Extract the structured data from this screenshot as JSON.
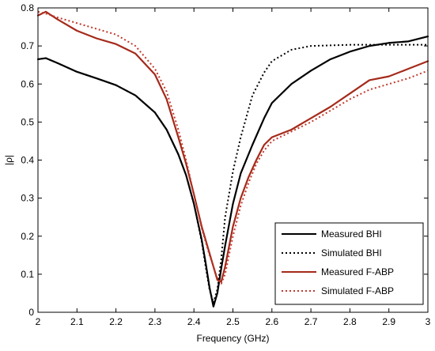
{
  "chart_data": {
    "type": "line",
    "xlabel": "Frequency (GHz)",
    "ylabel": "|ρ|",
    "xlim": [
      2,
      3
    ],
    "ylim": [
      0,
      0.8
    ],
    "x_ticks": [
      2,
      2.1,
      2.2,
      2.3,
      2.4,
      2.5,
      2.6,
      2.7,
      2.8,
      2.9,
      3
    ],
    "x_tick_labels": [
      "2",
      "2.1",
      "2.2",
      "2.3",
      "2.4",
      "2.5",
      "2.6",
      "2.7",
      "2.8",
      "2.9",
      "3"
    ],
    "y_ticks": [
      0,
      0.1,
      0.2,
      0.3,
      0.4,
      0.5,
      0.6,
      0.7,
      0.8
    ],
    "y_tick_labels": [
      "0",
      "0.1",
      "0.2",
      "0.3",
      "0.4",
      "0.5",
      "0.6",
      "0.7",
      "0.8"
    ],
    "grid": false,
    "legend_position": "bottom-right",
    "series": [
      {
        "name": "Measured BHI",
        "color": "#000000",
        "style": "solid",
        "points": [
          [
            2.0,
            0.665
          ],
          [
            2.02,
            0.668
          ],
          [
            2.05,
            0.655
          ],
          [
            2.1,
            0.632
          ],
          [
            2.15,
            0.615
          ],
          [
            2.2,
            0.597
          ],
          [
            2.25,
            0.57
          ],
          [
            2.3,
            0.525
          ],
          [
            2.33,
            0.48
          ],
          [
            2.36,
            0.415
          ],
          [
            2.38,
            0.36
          ],
          [
            2.4,
            0.285
          ],
          [
            2.42,
            0.19
          ],
          [
            2.43,
            0.13
          ],
          [
            2.44,
            0.065
          ],
          [
            2.45,
            0.015
          ],
          [
            2.46,
            0.05
          ],
          [
            2.47,
            0.115
          ],
          [
            2.48,
            0.175
          ],
          [
            2.5,
            0.285
          ],
          [
            2.52,
            0.365
          ],
          [
            2.55,
            0.44
          ],
          [
            2.58,
            0.51
          ],
          [
            2.6,
            0.55
          ],
          [
            2.65,
            0.6
          ],
          [
            2.7,
            0.635
          ],
          [
            2.75,
            0.665
          ],
          [
            2.8,
            0.685
          ],
          [
            2.85,
            0.7
          ],
          [
            2.9,
            0.708
          ],
          [
            2.95,
            0.712
          ],
          [
            3.0,
            0.725
          ]
        ]
      },
      {
        "name": "Simulated BHI",
        "color": "#000000",
        "style": "dotted",
        "points": [
          [
            2.0,
            0.665
          ],
          [
            2.02,
            0.668
          ],
          [
            2.05,
            0.655
          ],
          [
            2.1,
            0.632
          ],
          [
            2.15,
            0.615
          ],
          [
            2.2,
            0.597
          ],
          [
            2.25,
            0.57
          ],
          [
            2.3,
            0.525
          ],
          [
            2.33,
            0.48
          ],
          [
            2.36,
            0.415
          ],
          [
            2.38,
            0.36
          ],
          [
            2.4,
            0.285
          ],
          [
            2.42,
            0.185
          ],
          [
            2.43,
            0.12
          ],
          [
            2.44,
            0.06
          ],
          [
            2.45,
            0.025
          ],
          [
            2.46,
            0.06
          ],
          [
            2.47,
            0.14
          ],
          [
            2.48,
            0.25
          ],
          [
            2.5,
            0.37
          ],
          [
            2.52,
            0.46
          ],
          [
            2.55,
            0.57
          ],
          [
            2.58,
            0.63
          ],
          [
            2.6,
            0.66
          ],
          [
            2.65,
            0.69
          ],
          [
            2.7,
            0.7
          ],
          [
            2.8,
            0.703
          ],
          [
            2.9,
            0.703
          ],
          [
            3.0,
            0.703
          ]
        ]
      },
      {
        "name": "Measured F-ABP",
        "color": "#a52a1a",
        "style": "solid",
        "points": [
          [
            2.0,
            0.78
          ],
          [
            2.02,
            0.79
          ],
          [
            2.05,
            0.77
          ],
          [
            2.1,
            0.74
          ],
          [
            2.15,
            0.72
          ],
          [
            2.2,
            0.705
          ],
          [
            2.25,
            0.68
          ],
          [
            2.3,
            0.625
          ],
          [
            2.33,
            0.56
          ],
          [
            2.36,
            0.46
          ],
          [
            2.38,
            0.39
          ],
          [
            2.4,
            0.31
          ],
          [
            2.42,
            0.225
          ],
          [
            2.44,
            0.155
          ],
          [
            2.46,
            0.085
          ],
          [
            2.47,
            0.08
          ],
          [
            2.48,
            0.12
          ],
          [
            2.5,
            0.225
          ],
          [
            2.52,
            0.3
          ],
          [
            2.54,
            0.355
          ],
          [
            2.56,
            0.4
          ],
          [
            2.58,
            0.44
          ],
          [
            2.6,
            0.46
          ],
          [
            2.65,
            0.48
          ],
          [
            2.7,
            0.51
          ],
          [
            2.75,
            0.54
          ],
          [
            2.8,
            0.575
          ],
          [
            2.85,
            0.61
          ],
          [
            2.9,
            0.62
          ],
          [
            2.95,
            0.64
          ],
          [
            3.0,
            0.66
          ]
        ]
      },
      {
        "name": "Simulated F-ABP",
        "color": "#c0392b",
        "style": "dotted",
        "points": [
          [
            2.0,
            0.79
          ],
          [
            2.02,
            0.785
          ],
          [
            2.05,
            0.775
          ],
          [
            2.1,
            0.76
          ],
          [
            2.15,
            0.745
          ],
          [
            2.2,
            0.73
          ],
          [
            2.25,
            0.7
          ],
          [
            2.3,
            0.64
          ],
          [
            2.33,
            0.58
          ],
          [
            2.36,
            0.48
          ],
          [
            2.38,
            0.4
          ],
          [
            2.4,
            0.31
          ],
          [
            2.42,
            0.22
          ],
          [
            2.44,
            0.15
          ],
          [
            2.46,
            0.09
          ],
          [
            2.47,
            0.075
          ],
          [
            2.48,
            0.1
          ],
          [
            2.5,
            0.2
          ],
          [
            2.52,
            0.28
          ],
          [
            2.54,
            0.34
          ],
          [
            2.56,
            0.39
          ],
          [
            2.58,
            0.425
          ],
          [
            2.6,
            0.45
          ],
          [
            2.65,
            0.475
          ],
          [
            2.7,
            0.5
          ],
          [
            2.75,
            0.53
          ],
          [
            2.8,
            0.56
          ],
          [
            2.85,
            0.585
          ],
          [
            2.9,
            0.6
          ],
          [
            2.95,
            0.615
          ],
          [
            3.0,
            0.635
          ]
        ]
      }
    ]
  }
}
